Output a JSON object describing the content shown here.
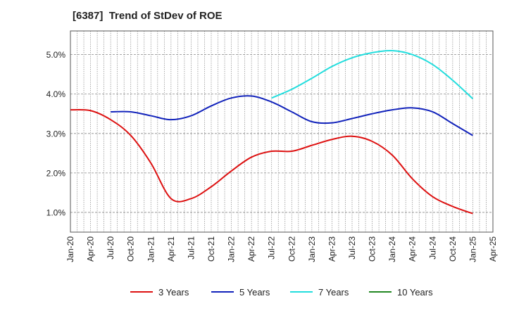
{
  "chart_data": {
    "type": "line",
    "title": "[6387]  Trend of StDev of ROE",
    "xlabel": "",
    "ylabel": "",
    "ylim": [
      0.5,
      5.6
    ],
    "grid": true,
    "legend_position": "bottom",
    "x_ticks": [
      "Jan-20",
      "Apr-20",
      "Jul-20",
      "Oct-20",
      "Jan-21",
      "Apr-21",
      "Jul-21",
      "Oct-21",
      "Jan-22",
      "Apr-22",
      "Jul-22",
      "Oct-22",
      "Jan-23",
      "Apr-23",
      "Jul-23",
      "Oct-23",
      "Jan-24",
      "Apr-24",
      "Jul-24",
      "Oct-24",
      "Jan-25",
      "Apr-25"
    ],
    "y_ticks": [
      {
        "value": 1.0,
        "label": "1.0%"
      },
      {
        "value": 2.0,
        "label": "2.0%"
      },
      {
        "value": 3.0,
        "label": "3.0%"
      },
      {
        "value": 4.0,
        "label": "4.0%"
      },
      {
        "value": 5.0,
        "label": "5.0%"
      }
    ],
    "series": [
      {
        "name": "3 Years",
        "color": "#dd1111",
        "points": [
          [
            "Jan-20",
            3.6
          ],
          [
            "Apr-20",
            3.58
          ],
          [
            "Jul-20",
            3.35
          ],
          [
            "Oct-20",
            2.95
          ],
          [
            "Jan-21",
            2.25
          ],
          [
            "Apr-21",
            1.35
          ],
          [
            "Jul-21",
            1.35
          ],
          [
            "Oct-21",
            1.65
          ],
          [
            "Jan-22",
            2.05
          ],
          [
            "Apr-22",
            2.4
          ],
          [
            "Jul-22",
            2.55
          ],
          [
            "Oct-22",
            2.55
          ],
          [
            "Jan-23",
            2.7
          ],
          [
            "Apr-23",
            2.85
          ],
          [
            "Jul-23",
            2.93
          ],
          [
            "Oct-23",
            2.8
          ],
          [
            "Jan-24",
            2.45
          ],
          [
            "Apr-24",
            1.85
          ],
          [
            "Jul-24",
            1.4
          ],
          [
            "Oct-24",
            1.15
          ],
          [
            "Jan-25",
            0.97
          ]
        ]
      },
      {
        "name": "5 Years",
        "color": "#1122bb",
        "points": [
          [
            "Jul-20",
            3.55
          ],
          [
            "Oct-20",
            3.55
          ],
          [
            "Jan-21",
            3.45
          ],
          [
            "Apr-21",
            3.35
          ],
          [
            "Jul-21",
            3.45
          ],
          [
            "Oct-21",
            3.7
          ],
          [
            "Jan-22",
            3.9
          ],
          [
            "Apr-22",
            3.95
          ],
          [
            "Jul-22",
            3.8
          ],
          [
            "Oct-22",
            3.55
          ],
          [
            "Jan-23",
            3.3
          ],
          [
            "Apr-23",
            3.27
          ],
          [
            "Jul-23",
            3.38
          ],
          [
            "Oct-23",
            3.5
          ],
          [
            "Jan-24",
            3.6
          ],
          [
            "Apr-24",
            3.65
          ],
          [
            "Jul-24",
            3.55
          ],
          [
            "Oct-24",
            3.25
          ],
          [
            "Jan-25",
            2.95
          ]
        ]
      },
      {
        "name": "7 Years",
        "color": "#22dddd",
        "points": [
          [
            "Jul-22",
            3.9
          ],
          [
            "Oct-22",
            4.12
          ],
          [
            "Jan-23",
            4.4
          ],
          [
            "Apr-23",
            4.7
          ],
          [
            "Jul-23",
            4.92
          ],
          [
            "Oct-23",
            5.05
          ],
          [
            "Jan-24",
            5.1
          ],
          [
            "Apr-24",
            5.0
          ],
          [
            "Jul-24",
            4.75
          ],
          [
            "Oct-24",
            4.35
          ],
          [
            "Jan-25",
            3.88
          ]
        ]
      },
      {
        "name": "10 Years",
        "color": "#228822",
        "points": []
      }
    ]
  }
}
